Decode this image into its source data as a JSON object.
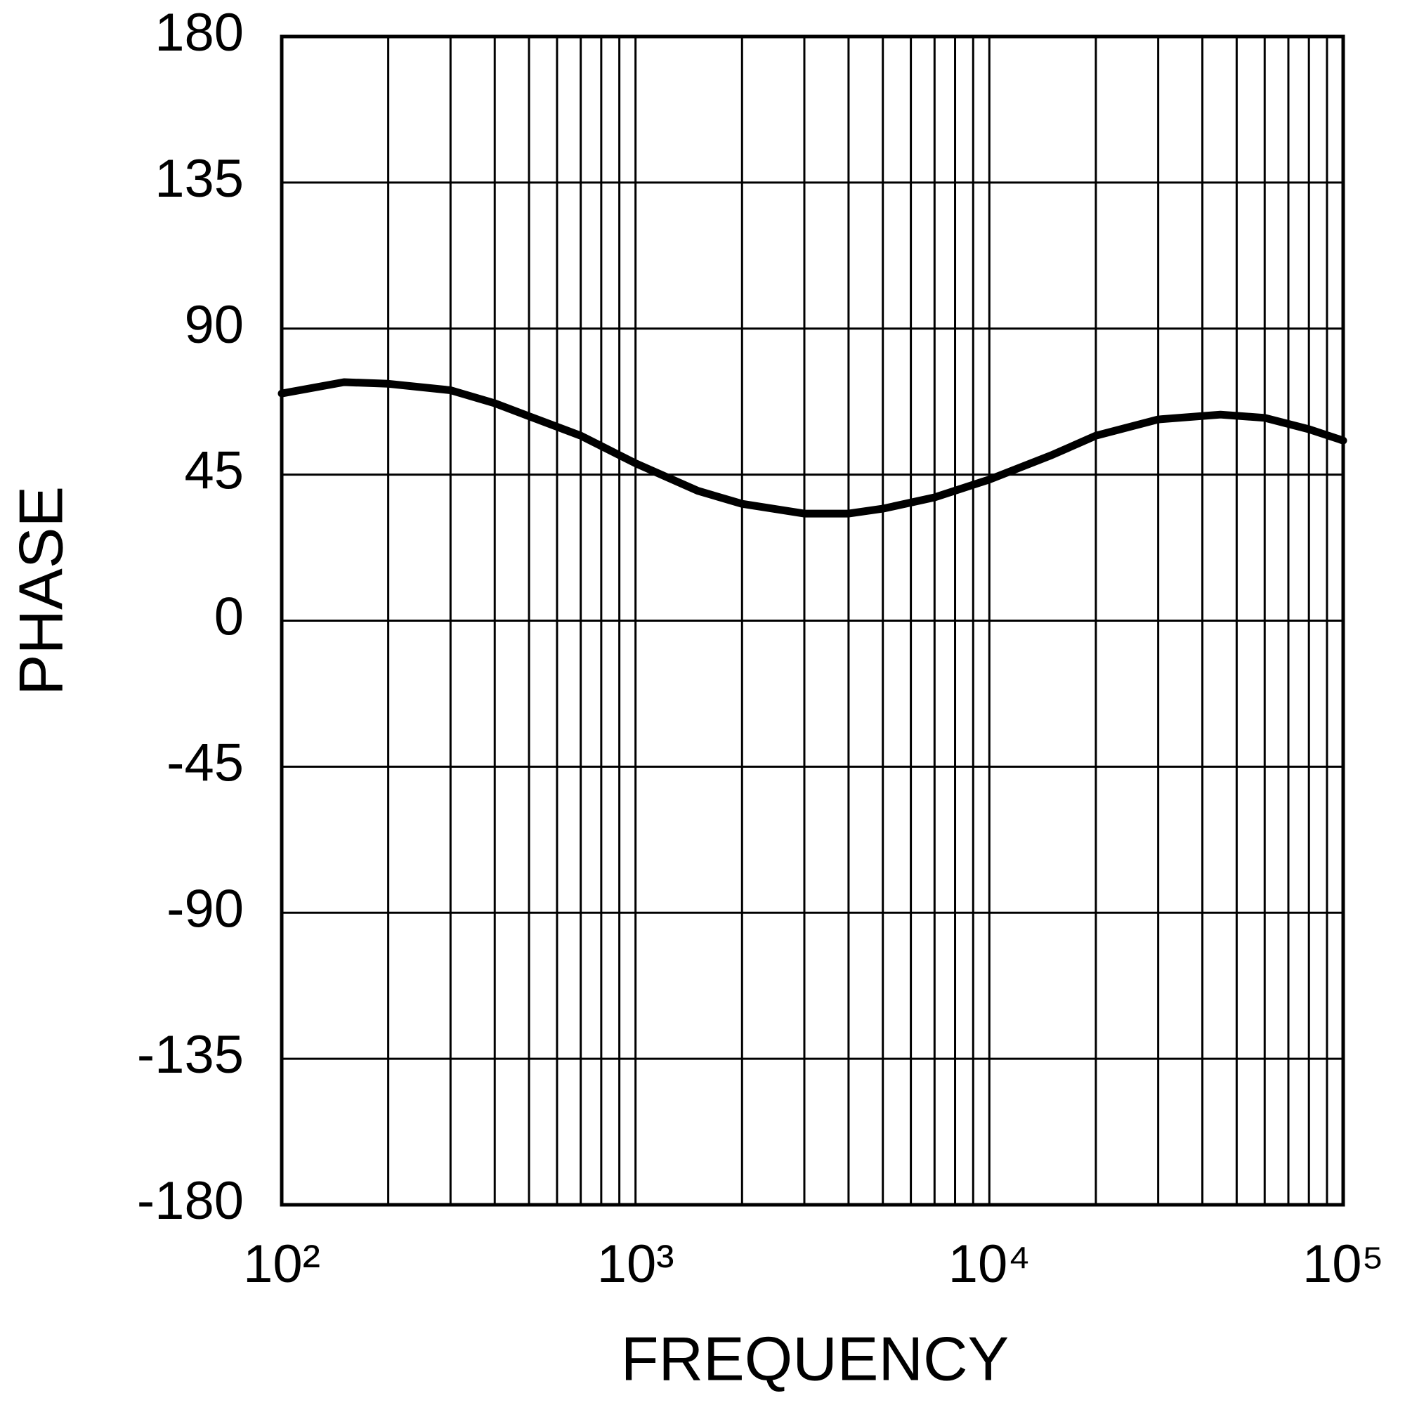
{
  "chart_data": {
    "type": "line",
    "x_label": "FREQUENCY",
    "y_label": "PHASE",
    "x": [
      100,
      150,
      200,
      300,
      400,
      500,
      700,
      1000,
      1500,
      2000,
      3000,
      4000,
      5000,
      7000,
      10000,
      15000,
      20000,
      30000,
      45000,
      60000,
      80000,
      100000
    ],
    "series": [
      {
        "color": "#000000",
        "values": [
          70,
          73.5,
          73,
          71,
          67,
          63,
          57,
          48.5,
          40,
          36,
          33,
          33,
          34.5,
          38,
          43.5,
          51,
          57,
          62,
          63.5,
          62.5,
          59,
          55.5
        ]
      }
    ],
    "xlim": [
      100,
      100000
    ],
    "log_x": true,
    "xticks": [
      {
        "value": 100,
        "label": "10²"
      },
      {
        "value": 1000,
        "label": "10³"
      },
      {
        "value": 10000,
        "label": "10⁴"
      },
      {
        "value": 100000,
        "label": "10⁵"
      }
    ],
    "ylim": [
      -180,
      180
    ],
    "yticks": [
      -180,
      -135,
      -90,
      -45,
      0,
      45,
      90,
      135,
      180
    ],
    "grid": true,
    "minor_log_grid": true
  }
}
